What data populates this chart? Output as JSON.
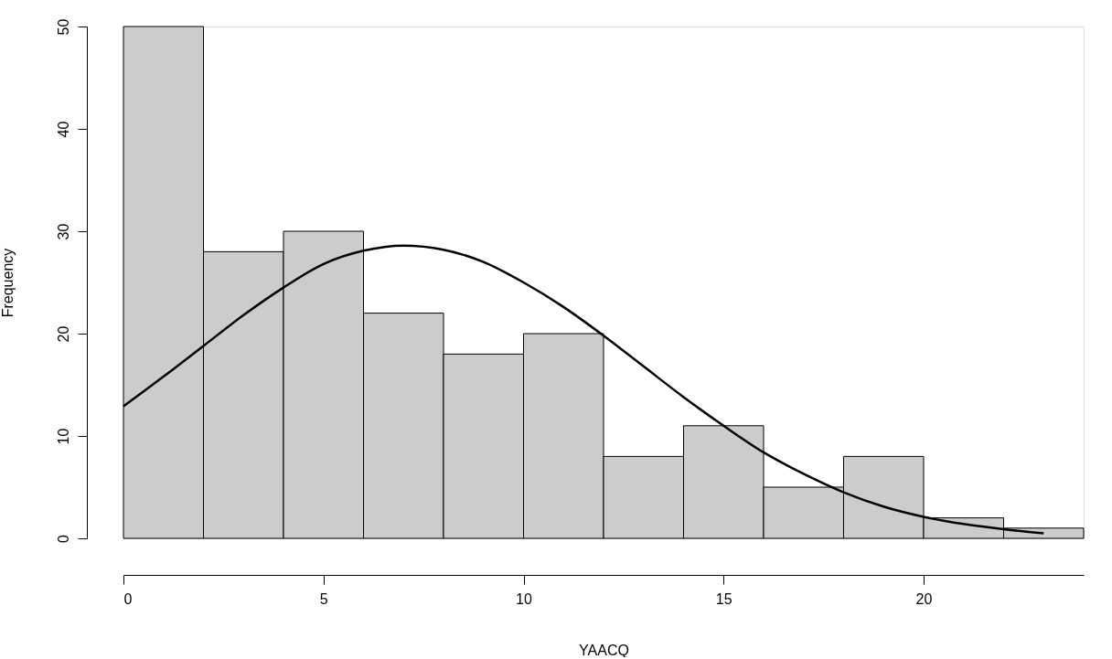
{
  "chart_data": {
    "type": "histogram",
    "xlabel": "YAACQ",
    "ylabel": "Frequency",
    "bins": [
      0,
      2,
      4,
      6,
      8,
      10,
      12,
      14,
      16,
      18,
      20,
      22,
      24
    ],
    "values": [
      50,
      28,
      30,
      22,
      18,
      20,
      8,
      11,
      5,
      8,
      2,
      1
    ],
    "color": "#cccccc",
    "series": [
      {
        "type": "line",
        "color": "#000000",
        "x": [
          0,
          1,
          2,
          3,
          4,
          5,
          6,
          7,
          8,
          9,
          10,
          11,
          12,
          13,
          14,
          15,
          16,
          17,
          18,
          19,
          20,
          21,
          22,
          23
        ],
        "values": [
          12.9,
          15.8,
          18.8,
          21.8,
          24.5,
          26.8,
          28.1,
          28.6,
          28.2,
          27.0,
          25.0,
          22.6,
          19.8,
          16.8,
          13.8,
          11.0,
          8.4,
          6.3,
          4.5,
          3.1,
          2.1,
          1.4,
          0.9,
          0.5
        ]
      }
    ],
    "xlim": [
      0,
      24
    ],
    "xticks": [
      0,
      5,
      10,
      15,
      20
    ],
    "ylim": [
      0,
      50
    ],
    "yticks": [
      0,
      10,
      20,
      30,
      40,
      50
    ],
    "grid": false
  }
}
